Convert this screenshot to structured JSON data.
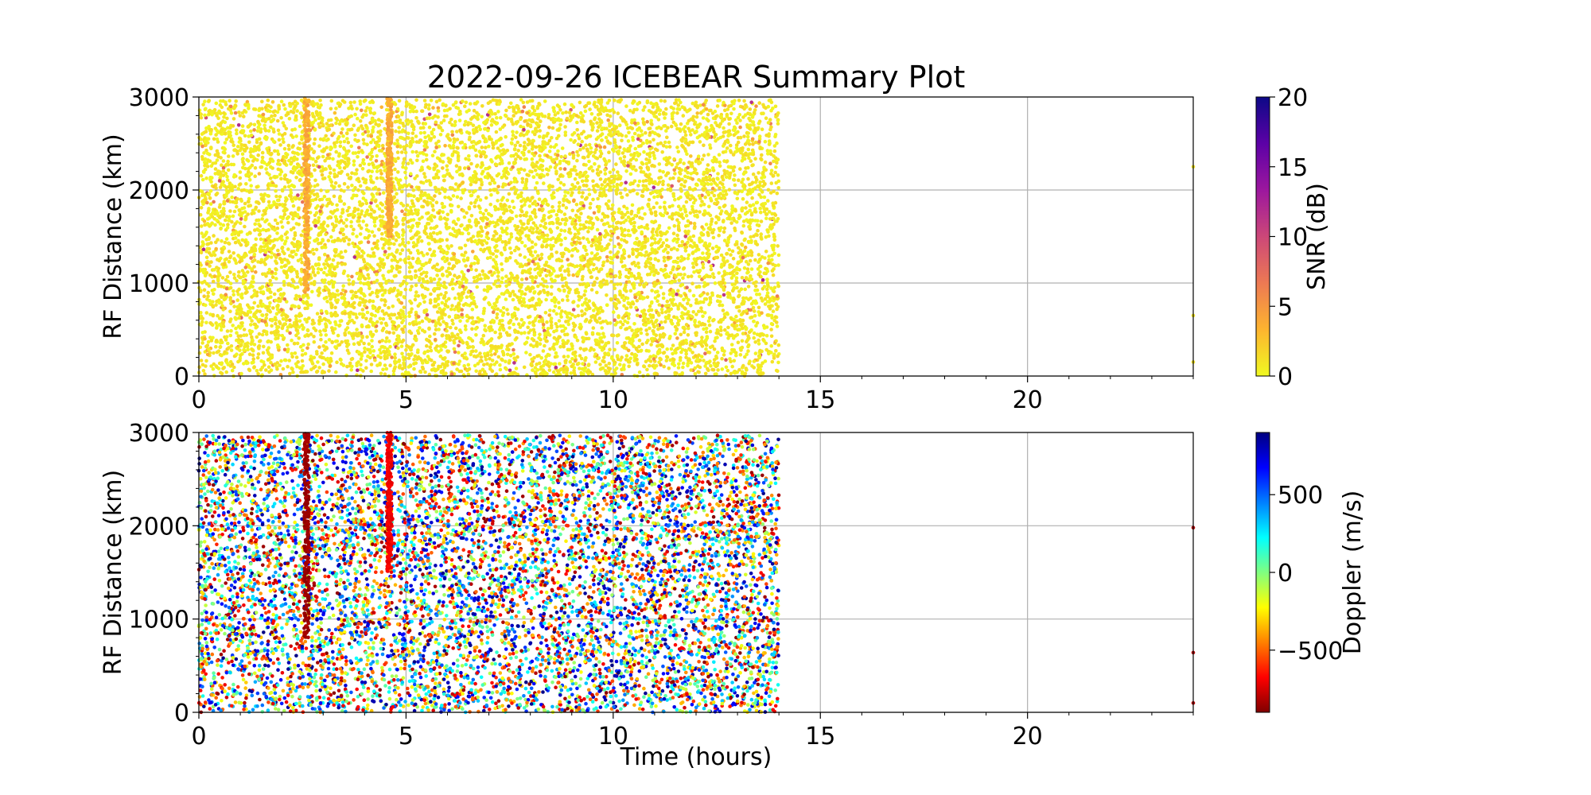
{
  "figure": {
    "title": "2022-09-26 ICEBEAR Summary Plot"
  },
  "chart_data": [
    {
      "type": "scatter",
      "panel": "top",
      "xlabel": "",
      "ylabel": "RF Distance (km)",
      "xlim": [
        0,
        24
      ],
      "ylim": [
        0,
        3000
      ],
      "xticks": [
        0,
        5,
        10,
        15,
        20
      ],
      "yticks": [
        0,
        1000,
        2000,
        3000
      ],
      "grid": true,
      "colormap": "plasma_r",
      "colorbar": {
        "label": "SNR (dB)",
        "range": [
          0,
          20
        ],
        "ticks": [
          0,
          5,
          10,
          15,
          20
        ],
        "colors": [
          "#f0f921",
          "#fdb42f",
          "#ed7953",
          "#cc4778",
          "#9c179e",
          "#5c01a6",
          "#0d0887"
        ]
      },
      "series": [
        {
          "description_of_data": "dense scatter of detections",
          "x_range": [
            0,
            14
          ],
          "y_range": [
            0,
            3000
          ],
          "dominant_value": 0,
          "typical_value_range": [
            0,
            3
          ],
          "streaks": [
            {
              "x": 2.6,
              "y_range": [
                900,
                3000
              ]
            },
            {
              "x": 4.6,
              "y_range": [
                1500,
                3000
              ]
            }
          ],
          "isolated_points": [
            {
              "x": 24,
              "y": 2250
            },
            {
              "x": 24,
              "y": 650
            },
            {
              "x": 24,
              "y": 150
            }
          ]
        }
      ]
    },
    {
      "type": "scatter",
      "panel": "bottom",
      "xlabel": "Time (hours)",
      "ylabel": "RF Distance (km)",
      "xlim": [
        0,
        24
      ],
      "ylim": [
        0,
        3000
      ],
      "xticks": [
        0,
        5,
        10,
        15,
        20
      ],
      "yticks": [
        0,
        1000,
        2000,
        3000
      ],
      "grid": true,
      "colormap": "jet_r",
      "colorbar": {
        "label": "Doppler (m/s)",
        "range": [
          -900,
          900
        ],
        "ticks": [
          -500,
          0,
          500
        ],
        "tick_labels": [
          "−500",
          "0",
          "500"
        ],
        "colors": [
          "#800000",
          "#ff0000",
          "#ff8000",
          "#ffff00",
          "#80ff80",
          "#00ffff",
          "#0080ff",
          "#0000ff",
          "#000080"
        ]
      },
      "series": [
        {
          "description_of_data": "dense scatter of detections with Doppler values spanning the full range",
          "x_range": [
            0,
            14
          ],
          "y_range": [
            0,
            3000
          ],
          "value_range": [
            -900,
            900
          ],
          "streaks": [
            {
              "x": 2.6,
              "y_range": [
                800,
                3000
              ],
              "value": -850
            },
            {
              "x": 4.6,
              "y_range": [
                1500,
                3000
              ],
              "value": -700
            }
          ],
          "isolated_points": [
            {
              "x": 24,
              "y": 1980
            },
            {
              "x": 24,
              "y": 640
            },
            {
              "x": 24,
              "y": 100
            }
          ]
        }
      ]
    }
  ]
}
